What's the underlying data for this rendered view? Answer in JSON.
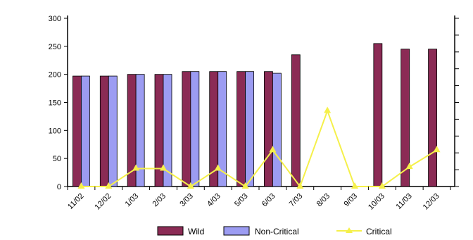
{
  "chart_data": {
    "type": "bar",
    "categories": [
      "11/02",
      "12/02",
      "1/03",
      "2/03",
      "3/03",
      "4/03",
      "5/03",
      "6/03",
      "7/03",
      "8/03",
      "9/03",
      "10/03",
      "11/03",
      "12/03"
    ],
    "series": [
      {
        "name": "Wild",
        "kind": "bar",
        "color": "#8b2b55",
        "values": [
          197,
          197,
          200,
          200,
          205,
          205,
          205,
          205,
          235,
          null,
          null,
          255,
          245,
          245
        ]
      },
      {
        "name": "Non-Critical",
        "kind": "bar",
        "color": "#9c9cf2",
        "values": [
          197,
          197,
          200,
          200,
          205,
          205,
          205,
          202,
          null,
          null,
          null,
          null,
          null,
          null
        ]
      },
      {
        "name": "Critical",
        "kind": "line",
        "color": "#f5f04a",
        "values": [
          0,
          0,
          32,
          32,
          0,
          32,
          0,
          65,
          0,
          135,
          0,
          0,
          35,
          65
        ]
      }
    ],
    "y_ticks": [
      0,
      50,
      100,
      150,
      200,
      250,
      300
    ],
    "ylim": [
      0,
      300
    ],
    "grid": false,
    "legend_position": "bottom",
    "title": "",
    "xlabel": "",
    "ylabel": ""
  }
}
